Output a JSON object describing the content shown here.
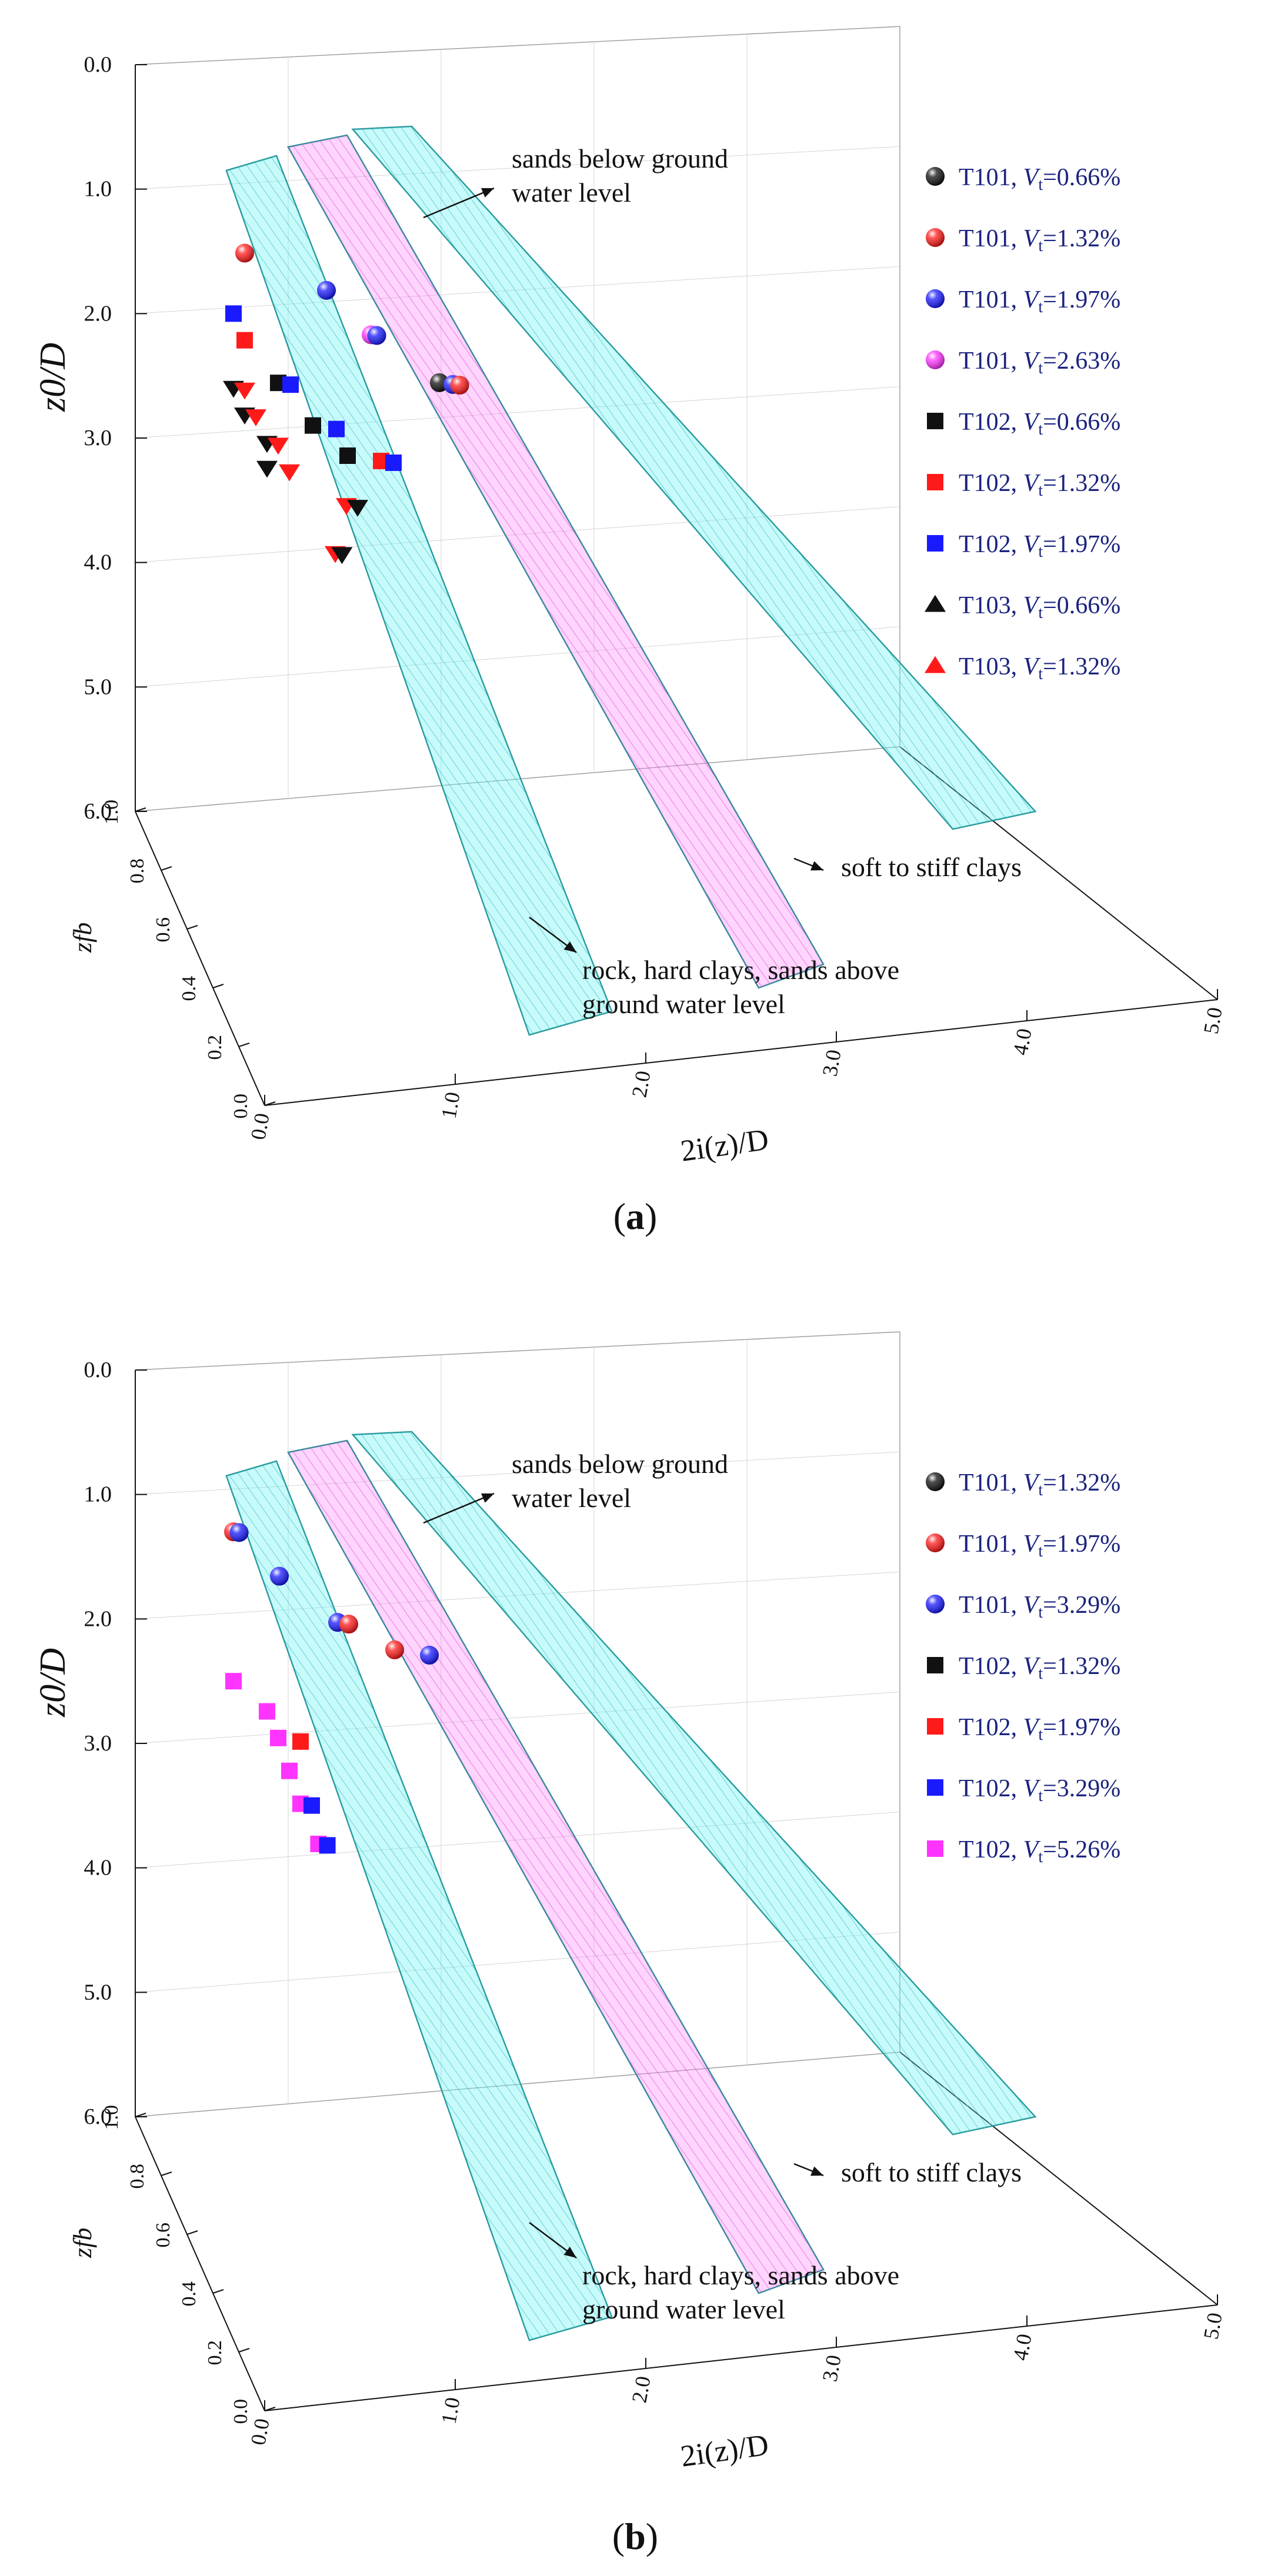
{
  "chart_data": [
    {
      "type": "scatter3d",
      "panel_label": "(a)",
      "panel_letter": "a",
      "zlabel": "z0/D",
      "ylabel": "2i(z)/D",
      "xlabel": "zfb",
      "z_ticks": [
        "0.0",
        "1.0",
        "2.0",
        "3.0",
        "4.0",
        "5.0",
        "6.0"
      ],
      "x_ticks": [
        "0.0",
        "0.2",
        "0.4",
        "0.6",
        "0.8",
        "1.0"
      ],
      "y_ticks": [
        "0.0",
        "1.0",
        "2.0",
        "3.0",
        "4.0",
        "5.0"
      ],
      "surface_labels": {
        "sands": [
          "sands below ground",
          "water level"
        ],
        "soft": [
          "soft to stiff clays"
        ],
        "rock": [
          "rock, hard clays, sands above",
          "ground water level"
        ]
      },
      "legend": [
        {
          "test": "T101,",
          "vt": "0.66%",
          "marker": "sphere",
          "color": "#111111"
        },
        {
          "test": "T101,",
          "vt": "1.32%",
          "marker": "sphere",
          "color": "#ff1a1a"
        },
        {
          "test": "T101,",
          "vt": "1.97%",
          "marker": "sphere",
          "color": "#1a1aff"
        },
        {
          "test": "T101,",
          "vt": "2.63%",
          "marker": "sphere",
          "color": "#ff33ff"
        },
        {
          "test": "T102,",
          "vt": "0.66%",
          "marker": "square",
          "color": "#111111"
        },
        {
          "test": "T102,",
          "vt": "1.32%",
          "marker": "square",
          "color": "#ff1a1a"
        },
        {
          "test": "T102,",
          "vt": "1.97%",
          "marker": "square",
          "color": "#1a1aff"
        },
        {
          "test": "T103,",
          "vt": "0.66%",
          "marker": "triangle",
          "color": "#111111"
        },
        {
          "test": "T103,",
          "vt": "1.32%",
          "marker": "triangle",
          "color": "#ff1a1a"
        }
      ],
      "legend_prefix": "V",
      "legend_sub": "t",
      "points": [
        {
          "marker": "sphere",
          "color": "#ff1a1a",
          "x": 0.05,
          "iz": 0.05,
          "z0": 1.5
        },
        {
          "marker": "sphere",
          "color": "#1a1aff",
          "x": 0.4,
          "iz": 0.2,
          "z0": 1.7
        },
        {
          "marker": "sphere",
          "color": "#ff33ff",
          "x": 0.6,
          "iz": 0.2,
          "z0": 2.0
        },
        {
          "marker": "sphere",
          "color": "#1a1aff",
          "x": 0.62,
          "iz": 0.25,
          "z0": 2.0
        },
        {
          "marker": "sphere",
          "color": "#111111",
          "x": 0.9,
          "iz": 0.25,
          "z0": 2.3
        },
        {
          "marker": "sphere",
          "color": "#1a1aff",
          "x": 0.95,
          "iz": 0.35,
          "z0": 2.3
        },
        {
          "marker": "sphere",
          "color": "#ff1a1a",
          "x": 0.97,
          "iz": 0.45,
          "z0": 2.3
        },
        {
          "marker": "square",
          "color": "#1a1aff",
          "x": 0.0,
          "iz": 0.05,
          "z0": 2.0
        },
        {
          "marker": "square",
          "color": "#ff1a1a",
          "x": 0.05,
          "iz": 0.05,
          "z0": 2.2
        },
        {
          "marker": "square",
          "color": "#111111",
          "x": 0.2,
          "iz": 0.05,
          "z0": 2.5
        },
        {
          "marker": "square",
          "color": "#1a1aff",
          "x": 0.25,
          "iz": 0.1,
          "z0": 2.5
        },
        {
          "marker": "square",
          "color": "#111111",
          "x": 0.35,
          "iz": 0.1,
          "z0": 2.8
        },
        {
          "marker": "square",
          "color": "#1a1aff",
          "x": 0.45,
          "iz": 0.15,
          "z0": 2.8
        },
        {
          "marker": "square",
          "color": "#111111",
          "x": 0.5,
          "iz": 0.15,
          "z0": 3.0
        },
        {
          "marker": "square",
          "color": "#ff1a1a",
          "x": 0.65,
          "iz": 0.15,
          "z0": 3.0
        },
        {
          "marker": "square",
          "color": "#1a1aff",
          "x": 0.7,
          "iz": 0.2,
          "z0": 3.0
        },
        {
          "marker": "triangle",
          "color": "#111111",
          "x": 0.0,
          "iz": 0.05,
          "z0": 2.6
        },
        {
          "marker": "triangle",
          "color": "#ff1a1a",
          "x": 0.05,
          "iz": 0.05,
          "z0": 2.6
        },
        {
          "marker": "triangle",
          "color": "#111111",
          "x": 0.05,
          "iz": 0.05,
          "z0": 2.8
        },
        {
          "marker": "triangle",
          "color": "#ff1a1a",
          "x": 0.1,
          "iz": 0.05,
          "z0": 2.8
        },
        {
          "marker": "triangle",
          "color": "#111111",
          "x": 0.15,
          "iz": 0.05,
          "z0": 3.0
        },
        {
          "marker": "triangle",
          "color": "#ff1a1a",
          "x": 0.2,
          "iz": 0.05,
          "z0": 3.0
        },
        {
          "marker": "triangle",
          "color": "#111111",
          "x": 0.15,
          "iz": 0.05,
          "z0": 3.2
        },
        {
          "marker": "triangle",
          "color": "#ff1a1a",
          "x": 0.25,
          "iz": 0.05,
          "z0": 3.2
        },
        {
          "marker": "triangle",
          "color": "#ff1a1a",
          "x": 0.5,
          "iz": 0.1,
          "z0": 3.4
        },
        {
          "marker": "triangle",
          "color": "#111111",
          "x": 0.55,
          "iz": 0.1,
          "z0": 3.4
        },
        {
          "marker": "triangle",
          "color": "#ff1a1a",
          "x": 0.45,
          "iz": 0.1,
          "z0": 3.8
        },
        {
          "marker": "triangle",
          "color": "#111111",
          "x": 0.48,
          "iz": 0.1,
          "z0": 3.8
        }
      ]
    },
    {
      "type": "scatter3d",
      "panel_label": "(b)",
      "panel_letter": "b",
      "zlabel": "z0/D",
      "ylabel": "2i(z)/D",
      "xlabel": "zfb",
      "z_ticks": [
        "0.0",
        "1.0",
        "2.0",
        "3.0",
        "4.0",
        "5.0",
        "6.0"
      ],
      "x_ticks": [
        "0.0",
        "0.2",
        "0.4",
        "0.6",
        "0.8",
        "1.0"
      ],
      "y_ticks": [
        "0.0",
        "1.0",
        "2.0",
        "3.0",
        "4.0",
        "5.0"
      ],
      "surface_labels": {
        "sands": [
          "sands below ground",
          "water level"
        ],
        "soft": [
          "soft to stiff clays"
        ],
        "rock": [
          "rock, hard clays, sands above",
          "ground water level"
        ]
      },
      "legend": [
        {
          "test": "T101,",
          "vt": "1.32%",
          "marker": "sphere",
          "color": "#111111"
        },
        {
          "test": "T101,",
          "vt": "1.97%",
          "marker": "sphere",
          "color": "#ff1a1a"
        },
        {
          "test": "T101,",
          "vt": "3.29%",
          "marker": "sphere",
          "color": "#1a1aff"
        },
        {
          "test": "T102,",
          "vt": "1.32%",
          "marker": "square",
          "color": "#111111"
        },
        {
          "test": "T102,",
          "vt": "1.97%",
          "marker": "square",
          "color": "#ff1a1a"
        },
        {
          "test": "T102,",
          "vt": "3.29%",
          "marker": "square",
          "color": "#1a1aff"
        },
        {
          "test": "T102,",
          "vt": "5.26%",
          "marker": "square",
          "color": "#ff33ff"
        }
      ],
      "legend_prefix": "V",
      "legend_sub": "t",
      "points": [
        {
          "marker": "sphere",
          "color": "#ff1a1a",
          "x": 0.0,
          "iz": 0.05,
          "z0": 1.3
        },
        {
          "marker": "sphere",
          "color": "#1a1aff",
          "x": 0.02,
          "iz": 0.1,
          "z0": 1.3
        },
        {
          "marker": "sphere",
          "color": "#1a1aff",
          "x": 0.2,
          "iz": 0.1,
          "z0": 1.6
        },
        {
          "marker": "sphere",
          "color": "#1a1aff",
          "x": 0.45,
          "iz": 0.2,
          "z0": 1.9
        },
        {
          "marker": "sphere",
          "color": "#ff1a1a",
          "x": 0.5,
          "iz": 0.2,
          "z0": 1.9
        },
        {
          "marker": "sphere",
          "color": "#ff1a1a",
          "x": 0.7,
          "iz": 0.25,
          "z0": 2.05
        },
        {
          "marker": "sphere",
          "color": "#1a1aff",
          "x": 0.85,
          "iz": 0.3,
          "z0": 2.05
        },
        {
          "marker": "square",
          "color": "#ff33ff",
          "x": 0.0,
          "iz": 0.05,
          "z0": 2.5
        },
        {
          "marker": "square",
          "color": "#ff33ff",
          "x": 0.15,
          "iz": 0.05,
          "z0": 2.7
        },
        {
          "marker": "square",
          "color": "#ff33ff",
          "x": 0.2,
          "iz": 0.05,
          "z0": 2.9
        },
        {
          "marker": "square",
          "color": "#ff1a1a",
          "x": 0.3,
          "iz": 0.05,
          "z0": 2.9
        },
        {
          "marker": "square",
          "color": "#ff33ff",
          "x": 0.25,
          "iz": 0.05,
          "z0": 3.15
        },
        {
          "marker": "square",
          "color": "#ff33ff",
          "x": 0.3,
          "iz": 0.05,
          "z0": 3.4
        },
        {
          "marker": "square",
          "color": "#1a1aff",
          "x": 0.35,
          "iz": 0.05,
          "z0": 3.4
        },
        {
          "marker": "square",
          "color": "#ff33ff",
          "x": 0.38,
          "iz": 0.05,
          "z0": 3.7
        },
        {
          "marker": "square",
          "color": "#1a1aff",
          "x": 0.42,
          "iz": 0.05,
          "z0": 3.7
        }
      ]
    }
  ]
}
